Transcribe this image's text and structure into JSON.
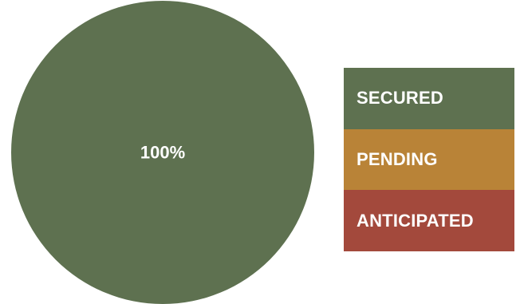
{
  "chart_data": {
    "type": "pie",
    "categories": [
      "SECURED",
      "PENDING",
      "ANTICIPATED"
    ],
    "values": [
      100,
      0,
      0
    ],
    "data_labels": [
      "100%"
    ],
    "colors": [
      "#5e7150",
      "#b98337",
      "#a3493c"
    ],
    "legend_placement": "right"
  },
  "legend": {
    "items": [
      {
        "label": "SECURED",
        "color": "#5e7150"
      },
      {
        "label": "PENDING",
        "color": "#b98337"
      },
      {
        "label": "ANTICIPATED",
        "color": "#a3493c"
      }
    ]
  }
}
